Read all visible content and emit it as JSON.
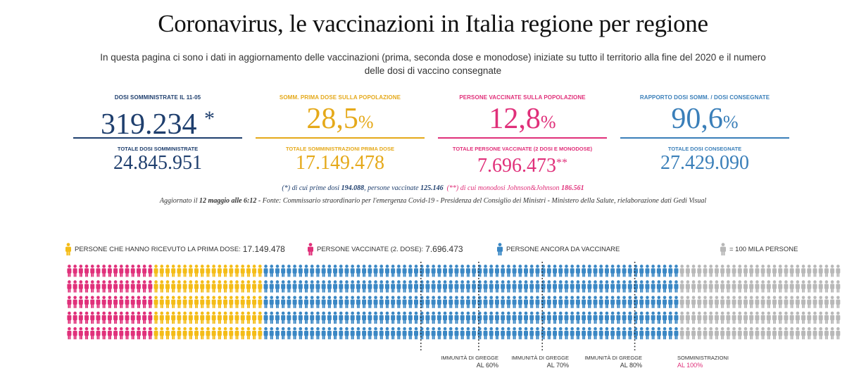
{
  "header": {
    "title": "Coronavirus, le vaccinazioni in Italia regione per regione",
    "subtitle": "In questa pagina ci sono i dati in aggiornamento delle vaccinazioni (prima, seconda dose e monodose) iniziate su tutto il territorio alla fine del 2020 e il numero delle dosi di vaccino consegnate"
  },
  "stats": [
    {
      "label": "Dosi somministrate il 11-05",
      "value": "319.234",
      "suffix": "*",
      "label2": "Totale dosi somministrate",
      "value2": "24.845.951",
      "suffix2": "",
      "color": "#1f3f6e"
    },
    {
      "label": "Somm. prima dose sulla popolazione",
      "value": "28,5",
      "suffix": "%",
      "label2": "Totale somministrazioni prima dose",
      "value2": "17.149.478",
      "suffix2": "",
      "color": "#e5a91a"
    },
    {
      "label": "Persone vaccinate sulla popolazione",
      "value": "12,8",
      "suffix": "%",
      "label2": "Totale persone vaccinate (2 dosi e monodose)",
      "value2": "7.696.473",
      "suffix2": "**",
      "color": "#e0307a"
    },
    {
      "label": "Rapporto dosi somm. / dosi consegnate",
      "value": "90,6",
      "suffix": "%",
      "label2": "Totale dosi consegnate",
      "value2": "27.429.090",
      "suffix2": "",
      "color": "#3a7fb9"
    }
  ],
  "footnotes": {
    "note1_a": "(*) di cui prime dosi ",
    "note1_b": "194.088",
    "note1_c": ", persone vaccinate ",
    "note1_d": "125.146",
    "note2_a": "(**) di cui monodosi Johnson&Johnson ",
    "note2_b": "186.561",
    "updated_a": "Aggiornato il ",
    "updated_b": "12 maggio alle 6:12",
    "updated_c": " - Fonte: Commissario straordinario per l'emergenza Covid-19 - Presidenza del Consiglio dei Ministri - Ministero della Salute, rielaborazione dati Gedi Visual"
  },
  "legend": {
    "first_dose_label": "Persone che hanno ricevuto la prima dose:",
    "first_dose_value": "17.149.478",
    "vaccinated_label": "Persone vaccinate (2. dose):",
    "vaccinated_value": "7.696.473",
    "to_vaccinate_label": "Persone ancora da vaccinare",
    "unit_label": "= 100 mila persone"
  },
  "colors": {
    "pink": "#e0307a",
    "gold": "#f4bc17",
    "blue": "#3a87c4",
    "grey": "#b8b8b8"
  },
  "chart_data": {
    "type": "pictogram",
    "unit": "100 mila persone",
    "rows": 5,
    "groups": [
      {
        "name": "Persone vaccinate (2. dose)",
        "people": 7696473,
        "color": "pink"
      },
      {
        "name": "Persone che hanno ricevuto la prima dose (solo prima)",
        "people": 9453005,
        "color": "gold"
      },
      {
        "name": "Persone ancora da vaccinare",
        "people": 36000000,
        "color": "blue"
      },
      {
        "name": "Somministrazioni",
        "people": 14000000,
        "color": "grey"
      }
    ],
    "markers": [
      {
        "label": "Immunità di gregge",
        "value": "al 60%",
        "icon_col": 61
      },
      {
        "label": "Immunità di gregge",
        "value": "al 70%",
        "icon_col": 71
      },
      {
        "label": "Immunità di gregge",
        "value": "al 80%",
        "icon_col": 82
      },
      {
        "label": "Somministrazioni",
        "value": "al 100%",
        "icon_col": 98
      }
    ]
  }
}
